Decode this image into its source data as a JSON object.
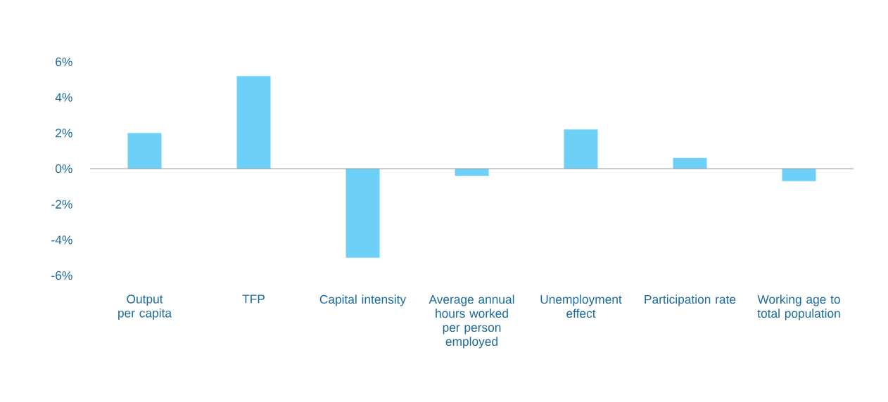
{
  "chart_data": {
    "type": "bar",
    "categories": [
      "Output per capita",
      "TFP",
      "Capital intensity",
      "Average annual hours worked per person employed",
      "Unemployment effect",
      "Participation rate",
      "Working age to total population"
    ],
    "values": [
      2.0,
      5.2,
      -5.0,
      -0.4,
      2.2,
      0.6,
      -0.7
    ],
    "color": "#6dd0f7",
    "ylim": [
      -6,
      6
    ],
    "yticks": [
      {
        "value": -6,
        "label": "-6%"
      },
      {
        "value": -4,
        "label": "-4%"
      },
      {
        "value": -2,
        "label": "-2%"
      },
      {
        "value": 0,
        "label": "0%"
      },
      {
        "value": 2,
        "label": "2%"
      },
      {
        "value": 4,
        "label": "4%"
      },
      {
        "value": 6,
        "label": "6%"
      }
    ]
  }
}
